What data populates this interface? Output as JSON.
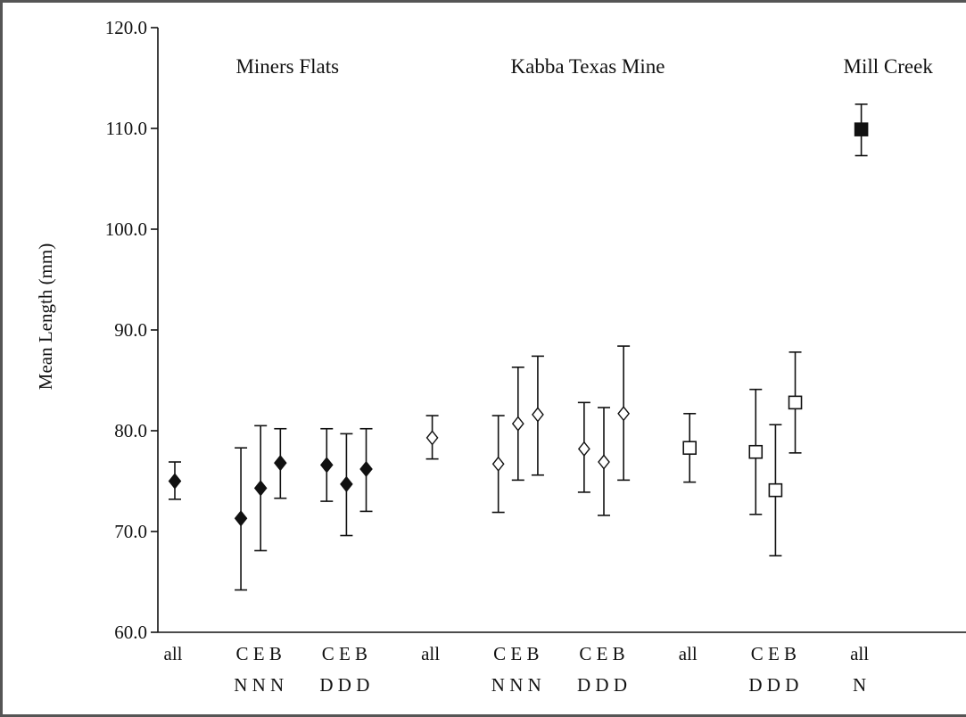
{
  "chart_data": {
    "type": "scatter",
    "title": "",
    "ylabel": "Mean Length (mm)",
    "xlabel": "",
    "ylim": [
      60.0,
      120.0
    ],
    "y_ticks": [
      "120.0",
      "110.0",
      "100.0",
      "90.0",
      "80.0",
      "70.0",
      "60.0"
    ],
    "grid": false,
    "legend": "none",
    "groups": [
      {
        "label": "Miners Flats",
        "position": 1.5
      },
      {
        "label": "Kabba Texas Mine",
        "position": 5.0
      },
      {
        "label": "Mill Creek",
        "position": 8.5
      }
    ],
    "categories": [
      {
        "line1": "all",
        "line2": "",
        "position": 0
      },
      {
        "line1": "C E B",
        "line2": "N N N",
        "position": 1
      },
      {
        "line1": "C E B",
        "line2": "D D D",
        "position": 2
      },
      {
        "line1": "all",
        "line2": "",
        "position": 3
      },
      {
        "line1": "C E B",
        "line2": "N N N",
        "position": 4
      },
      {
        "line1": "C E B",
        "line2": "D D D",
        "position": 5
      },
      {
        "line1": "all",
        "line2": "",
        "position": 6
      },
      {
        "line1": "C E B",
        "line2": "D D D",
        "position": 7
      },
      {
        "line1": "all",
        "line2": "N",
        "position": 8
      }
    ],
    "series": [
      {
        "marker": "diamond-filled",
        "points": [
          {
            "x": 0.0,
            "y": 75.0,
            "low": 73.2,
            "high": 76.9
          },
          {
            "x": 0.77,
            "y": 71.3,
            "low": 64.2,
            "high": 78.3
          },
          {
            "x": 1.0,
            "y": 74.3,
            "low": 68.1,
            "high": 80.5
          },
          {
            "x": 1.23,
            "y": 76.8,
            "low": 73.3,
            "high": 80.2
          },
          {
            "x": 1.77,
            "y": 76.6,
            "low": 73.0,
            "high": 80.2
          },
          {
            "x": 2.0,
            "y": 74.7,
            "low": 69.6,
            "high": 79.7
          },
          {
            "x": 2.23,
            "y": 76.2,
            "low": 72.0,
            "high": 80.2
          }
        ]
      },
      {
        "marker": "diamond-open",
        "points": [
          {
            "x": 3.0,
            "y": 79.3,
            "low": 77.2,
            "high": 81.5
          },
          {
            "x": 3.77,
            "y": 76.7,
            "low": 71.9,
            "high": 81.5
          },
          {
            "x": 4.0,
            "y": 80.7,
            "low": 75.1,
            "high": 86.3
          },
          {
            "x": 4.23,
            "y": 81.6,
            "low": 75.6,
            "high": 87.4
          },
          {
            "x": 4.77,
            "y": 78.2,
            "low": 73.9,
            "high": 82.8
          },
          {
            "x": 5.0,
            "y": 76.9,
            "low": 71.6,
            "high": 82.3
          },
          {
            "x": 5.23,
            "y": 81.7,
            "low": 75.1,
            "high": 88.4
          }
        ]
      },
      {
        "marker": "square-open",
        "points": [
          {
            "x": 6.0,
            "y": 78.3,
            "low": 74.9,
            "high": 81.7
          },
          {
            "x": 6.77,
            "y": 77.9,
            "low": 71.7,
            "high": 84.1
          },
          {
            "x": 7.0,
            "y": 74.1,
            "low": 67.6,
            "high": 80.6
          },
          {
            "x": 7.23,
            "y": 82.8,
            "low": 77.8,
            "high": 87.8
          }
        ]
      },
      {
        "marker": "square-filled",
        "points": [
          {
            "x": 8.0,
            "y": 109.9,
            "low": 107.3,
            "high": 112.4
          }
        ]
      }
    ]
  }
}
